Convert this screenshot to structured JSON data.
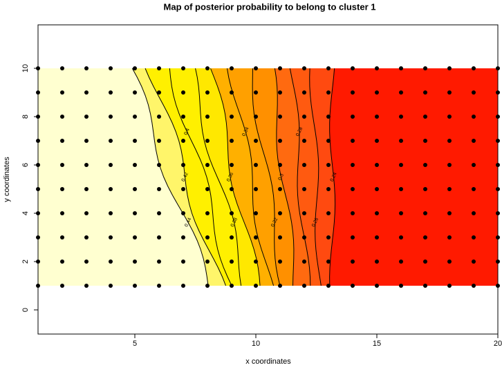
{
  "chart_data": {
    "type": "contour",
    "title": "Map of posterior probability to belong to cluster  1",
    "xlabel": "x coordinates",
    "ylabel": "y coordinates",
    "xlim": [
      1,
      20
    ],
    "ylim": [
      -1,
      11.8
    ],
    "xticks": [
      5,
      10,
      15,
      20
    ],
    "yticks": [
      0,
      2,
      4,
      6,
      8,
      10
    ],
    "grid_x": [
      1,
      2,
      3,
      4,
      5,
      6,
      7,
      8,
      9,
      10,
      11,
      12,
      13,
      14,
      15,
      16,
      17,
      18,
      19,
      20
    ],
    "grid_y": [
      1,
      2,
      3,
      4,
      5,
      6,
      7,
      8,
      9,
      10
    ],
    "levels": [
      0.44,
      0.42,
      0.4,
      0.38,
      0.36,
      0.34,
      0.32,
      0.3,
      0.28,
      0.26,
      0.24
    ],
    "zone_colors": [
      "#FFFFD0",
      "#FFF56A",
      "#FFF000",
      "#FFF000",
      "#FFE800",
      "#FFB000",
      "#FFA000",
      "#FF9000",
      "#FF6A10",
      "#FF5A10",
      "#FF4A10"
    ],
    "high_color": "#FF1A00",
    "point_color": "#000000"
  }
}
